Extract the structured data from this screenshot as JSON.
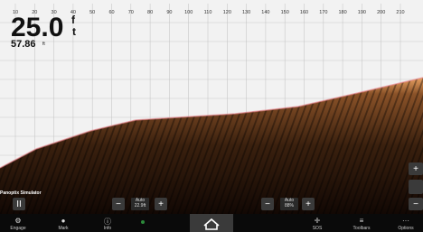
{
  "ruler": [
    "10",
    "20",
    "30",
    "40",
    "50",
    "60",
    "70",
    "80",
    "90",
    "100",
    "110",
    "120",
    "130",
    "140",
    "150",
    "160",
    "170",
    "180",
    "190",
    "200",
    "210"
  ],
  "depth": {
    "value": "25.0",
    "unit_top": "f",
    "unit_bottom": "t"
  },
  "temperature": {
    "value": "57.86",
    "unit": "ft"
  },
  "source": "Panoptix Simulator",
  "range_control": {
    "mode": "Auto",
    "value": "22.9ft"
  },
  "gain_control": {
    "mode": "Auto",
    "value": "88%"
  },
  "toolbar": [
    "Engage",
    "Mark",
    "Info",
    "SOS",
    "Toolbars",
    "Options"
  ]
}
